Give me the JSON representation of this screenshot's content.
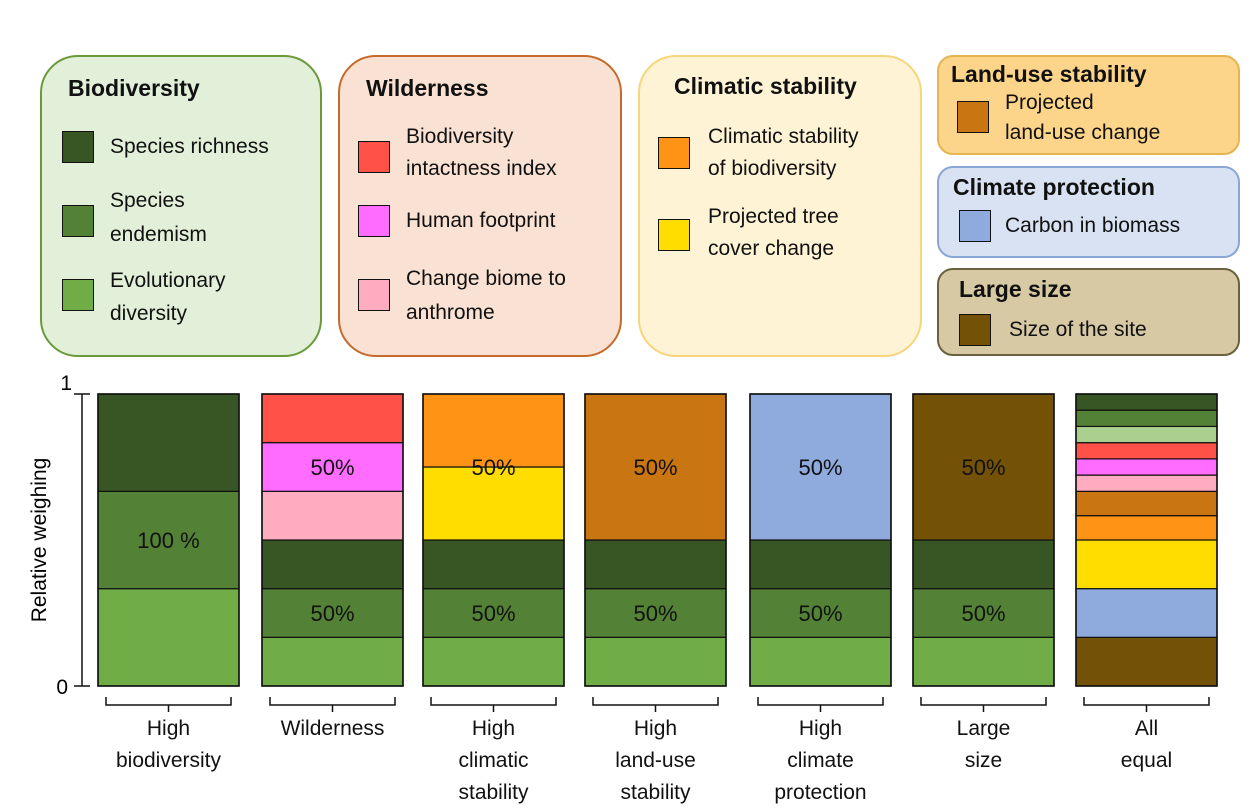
{
  "colors": {
    "species_richness": "#375623",
    "species_endemism": "#538135",
    "evolutionary_diversity": "#70ad47",
    "evolutionary_diversity_light": "#a9d08e",
    "bii": "#ff5147",
    "human_footprint": "#ff6cff",
    "biome_anthrome": "#ffabc0",
    "climatic_stability_bio": "#ff9315",
    "tree_cover": "#ffdd00",
    "land_use": "#c97512",
    "carbon": "#8faadc",
    "site_size": "#735208"
  },
  "legend": {
    "biodiversity": {
      "title": "Biodiversity",
      "items": [
        "Species richness",
        "Species",
        "endemism",
        "Evolutionary",
        "diversity"
      ]
    },
    "wilderness": {
      "title": "Wilderness",
      "items": [
        "Biodiversity",
        "intactness index",
        "Human footprint",
        "Change biome to",
        "anthrome"
      ]
    },
    "climatic_stability": {
      "title": "Climatic stability",
      "items": [
        "Climatic stability",
        "of biodiversity",
        "Projected tree",
        "cover change"
      ]
    },
    "land_use_stability": {
      "title": "Land-use stability",
      "items": [
        "Projected",
        "land-use change"
      ]
    },
    "climate_protection": {
      "title": "Climate protection",
      "items": [
        "Carbon in biomass"
      ]
    },
    "large_size": {
      "title": "Large size",
      "items": [
        "Size of the site"
      ]
    }
  },
  "chart_data": {
    "type": "bar",
    "stacked": true,
    "ylabel": "Relative weighing",
    "ylim": [
      0,
      1
    ],
    "yticks": [
      "0",
      "1"
    ],
    "categories": [
      [
        "High",
        "biodiversity"
      ],
      [
        "Wilderness"
      ],
      [
        "High",
        "climatic",
        "stability"
      ],
      [
        "High",
        "land-use",
        "stability"
      ],
      [
        "High",
        "climate",
        "protection"
      ],
      [
        "Large",
        "size"
      ],
      [
        "All",
        "equal"
      ]
    ],
    "stacks": [
      {
        "segments": [
          {
            "color": "evolutionary_diversity",
            "value": 0.3333
          },
          {
            "color": "species_endemism",
            "value": 0.3333
          },
          {
            "color": "species_richness",
            "value": 0.3334
          }
        ],
        "labels": [
          {
            "text": "100 %",
            "y": 0.5
          }
        ]
      },
      {
        "segments": [
          {
            "color": "evolutionary_diversity",
            "value": 0.1667
          },
          {
            "color": "species_endemism",
            "value": 0.1667
          },
          {
            "color": "species_richness",
            "value": 0.1666
          },
          {
            "color": "biome_anthrome",
            "value": 0.1667
          },
          {
            "color": "human_footprint",
            "value": 0.1667
          },
          {
            "color": "bii",
            "value": 0.1666
          }
        ],
        "labels": [
          {
            "text": "50%",
            "y": 0.25
          },
          {
            "text": "50%",
            "y": 0.75
          }
        ]
      },
      {
        "segments": [
          {
            "color": "evolutionary_diversity",
            "value": 0.1667
          },
          {
            "color": "species_endemism",
            "value": 0.1667
          },
          {
            "color": "species_richness",
            "value": 0.1666
          },
          {
            "color": "tree_cover",
            "value": 0.25
          },
          {
            "color": "climatic_stability_bio",
            "value": 0.25
          }
        ],
        "labels": [
          {
            "text": "50%",
            "y": 0.25
          },
          {
            "text": "50%",
            "y": 0.75
          }
        ]
      },
      {
        "segments": [
          {
            "color": "evolutionary_diversity",
            "value": 0.1667
          },
          {
            "color": "species_endemism",
            "value": 0.1667
          },
          {
            "color": "species_richness",
            "value": 0.1666
          },
          {
            "color": "land_use",
            "value": 0.5
          }
        ],
        "labels": [
          {
            "text": "50%",
            "y": 0.25
          },
          {
            "text": "50%",
            "y": 0.75
          }
        ]
      },
      {
        "segments": [
          {
            "color": "evolutionary_diversity",
            "value": 0.1667
          },
          {
            "color": "species_endemism",
            "value": 0.1667
          },
          {
            "color": "species_richness",
            "value": 0.1666
          },
          {
            "color": "carbon",
            "value": 0.5
          }
        ],
        "labels": [
          {
            "text": "50%",
            "y": 0.25
          },
          {
            "text": "50%",
            "y": 0.75
          }
        ]
      },
      {
        "segments": [
          {
            "color": "evolutionary_diversity",
            "value": 0.1667
          },
          {
            "color": "species_endemism",
            "value": 0.1667
          },
          {
            "color": "species_richness",
            "value": 0.1666
          },
          {
            "color": "site_size",
            "value": 0.5
          }
        ],
        "labels": [
          {
            "text": "50%",
            "y": 0.25
          },
          {
            "text": "50%",
            "y": 0.75
          }
        ]
      },
      {
        "segments": [
          {
            "color": "site_size",
            "value": 0.1667
          },
          {
            "color": "carbon",
            "value": 0.1667
          },
          {
            "color": "tree_cover",
            "value": 0.1667
          },
          {
            "color": "climatic_stability_bio",
            "value": 0.0833
          },
          {
            "color": "land_use",
            "value": 0.0833
          },
          {
            "color": "biome_anthrome",
            "value": 0.0556
          },
          {
            "color": "human_footprint",
            "value": 0.0556
          },
          {
            "color": "bii",
            "value": 0.0555
          },
          {
            "color": "evolutionary_diversity_light",
            "value": 0.0556
          },
          {
            "color": "species_endemism",
            "value": 0.0556
          },
          {
            "color": "species_richness",
            "value": 0.0555
          }
        ],
        "labels": []
      }
    ]
  }
}
